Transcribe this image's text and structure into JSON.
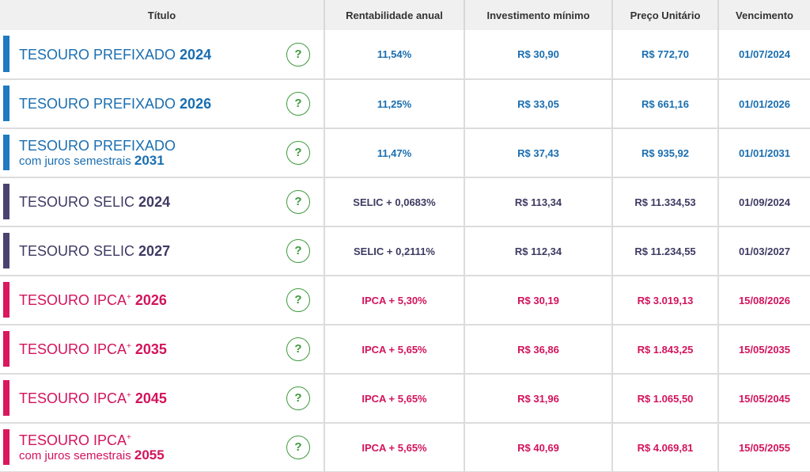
{
  "header": {
    "col_titulo": "Título",
    "col_rentabilidade": "Rentabilidade anual",
    "col_investimento": "Investimento mínimo",
    "col_preco": "Preço Unitário",
    "col_vencimento": "Vencimento"
  },
  "help_symbol": "?",
  "colors": {
    "prefixado": "#1a6eb0",
    "prefixado_bar": "#1f7ac0",
    "selic": "#3e3a63",
    "selic_bar": "#4a4370",
    "ipca": "#d3135b",
    "ipca_bar": "#d9185e",
    "help_icon": "#3d9a3d"
  },
  "rows": [
    {
      "group": "prefixado",
      "name": "TESOURO PREFIXADO",
      "sup": "",
      "sub": "",
      "year": "2024",
      "rentabilidade": "11,54%",
      "investimento": "R$ 30,90",
      "preco": "R$ 772,70",
      "vencimento": "01/07/2024"
    },
    {
      "group": "prefixado",
      "name": "TESOURO PREFIXADO",
      "sup": "",
      "sub": "",
      "year": "2026",
      "rentabilidade": "11,25%",
      "investimento": "R$ 33,05",
      "preco": "R$ 661,16",
      "vencimento": "01/01/2026"
    },
    {
      "group": "prefixado",
      "name": "TESOURO PREFIXADO",
      "sup": "",
      "sub": "com juros semestrais",
      "year": "2031",
      "rentabilidade": "11,47%",
      "investimento": "R$ 37,43",
      "preco": "R$ 935,92",
      "vencimento": "01/01/2031"
    },
    {
      "group": "selic",
      "name": "TESOURO SELIC",
      "sup": "",
      "sub": "",
      "year": "2024",
      "rentabilidade": "SELIC + 0,0683%",
      "investimento": "R$ 113,34",
      "preco": "R$ 11.334,53",
      "vencimento": "01/09/2024"
    },
    {
      "group": "selic",
      "name": "TESOURO SELIC",
      "sup": "",
      "sub": "",
      "year": "2027",
      "rentabilidade": "SELIC + 0,2111%",
      "investimento": "R$ 112,34",
      "preco": "R$ 11.234,55",
      "vencimento": "01/03/2027"
    },
    {
      "group": "ipca",
      "name": "TESOURO IPCA",
      "sup": "+",
      "sub": "",
      "year": "2026",
      "rentabilidade": "IPCA + 5,30%",
      "investimento": "R$ 30,19",
      "preco": "R$ 3.019,13",
      "vencimento": "15/08/2026"
    },
    {
      "group": "ipca",
      "name": "TESOURO IPCA",
      "sup": "+",
      "sub": "",
      "year": "2035",
      "rentabilidade": "IPCA + 5,65%",
      "investimento": "R$ 36,86",
      "preco": "R$ 1.843,25",
      "vencimento": "15/05/2035"
    },
    {
      "group": "ipca",
      "name": "TESOURO IPCA",
      "sup": "+",
      "sub": "",
      "year": "2045",
      "rentabilidade": "IPCA + 5,65%",
      "investimento": "R$ 31,96",
      "preco": "R$ 1.065,50",
      "vencimento": "15/05/2045"
    },
    {
      "group": "ipca",
      "name": "TESOURO IPCA",
      "sup": "+",
      "sub": "com juros semestrais",
      "year": "2055",
      "rentabilidade": "IPCA + 5,65%",
      "investimento": "R$ 40,69",
      "preco": "R$ 4.069,81",
      "vencimento": "15/05/2055"
    }
  ]
}
